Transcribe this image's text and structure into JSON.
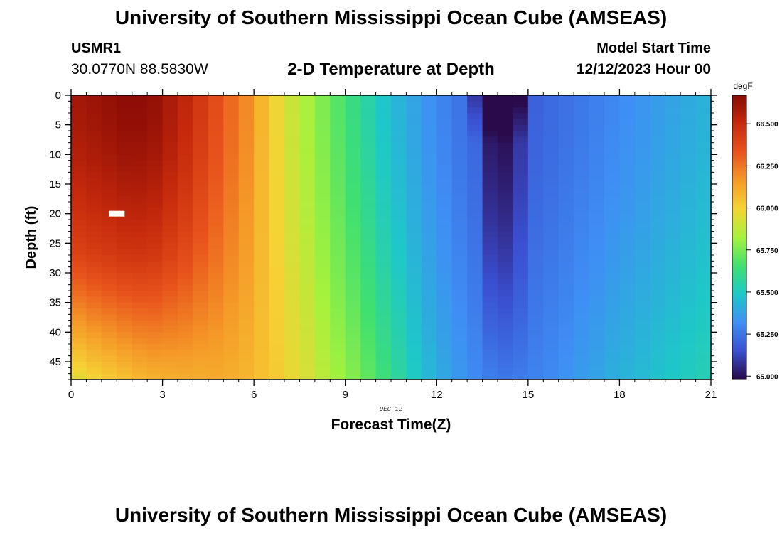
{
  "header": {
    "title": "University of Southern Mississippi Ocean Cube (AMSEAS)",
    "station": "USMR1",
    "coordinates": "30.0770N  88.5830W",
    "subtitle": "2-D Temperature at Depth",
    "model_start_label": "Model Start Time",
    "model_start_value": "12/12/2023 Hour 00"
  },
  "footer": {
    "title": "University of Southern Mississippi Ocean Cube (AMSEAS)"
  },
  "chart_data": {
    "type": "heatmap",
    "title": "2-D Temperature at Depth",
    "xlabel": "Forecast Time(Z)",
    "ylabel": "Depth (ft)",
    "date_label": "DEC 12",
    "xlim": [
      0,
      21
    ],
    "ylim": [
      0,
      48
    ],
    "x_ticks": [
      0,
      3,
      6,
      9,
      12,
      15,
      18,
      21
    ],
    "y_ticks": [
      0,
      5,
      10,
      15,
      20,
      25,
      30,
      35,
      40,
      45
    ],
    "colorbar": {
      "unit": "degF",
      "min": 64.98,
      "max": 66.67,
      "ticks": [
        "65.000",
        "65.250",
        "65.500",
        "65.750",
        "66.000",
        "66.250",
        "66.500"
      ],
      "colors": [
        "#2a0a4a",
        "#3a4fd0",
        "#3f8ef5",
        "#1ec8c8",
        "#40e070",
        "#a6f23c",
        "#f5d335",
        "#f59a28",
        "#e8531c",
        "#c62a0c",
        "#8a0b05"
      ]
    },
    "missing_cell": {
      "time": 1.5,
      "depth": 20
    },
    "columns": [
      {
        "time": 0.25,
        "surface": 66.6,
        "bottom": 66.12
      },
      {
        "time": 0.75,
        "surface": 66.62,
        "bottom": 66.14
      },
      {
        "time": 1.25,
        "surface": 66.64,
        "bottom": 66.15
      },
      {
        "time": 1.75,
        "surface": 66.66,
        "bottom": 66.16
      },
      {
        "time": 2.25,
        "surface": 66.66,
        "bottom": 66.17
      },
      {
        "time": 2.75,
        "surface": 66.64,
        "bottom": 66.17
      },
      {
        "time": 3.25,
        "surface": 66.58,
        "bottom": 66.16
      },
      {
        "time": 3.75,
        "surface": 66.52,
        "bottom": 66.15
      },
      {
        "time": 4.25,
        "surface": 66.44,
        "bottom": 66.13
      },
      {
        "time": 4.75,
        "surface": 66.36,
        "bottom": 66.12
      },
      {
        "time": 5.25,
        "surface": 66.28,
        "bottom": 66.1
      },
      {
        "time": 5.75,
        "surface": 66.2,
        "bottom": 66.08
      },
      {
        "time": 6.25,
        "surface": 66.08,
        "bottom": 66.05
      },
      {
        "time": 6.75,
        "surface": 65.98,
        "bottom": 66.02
      },
      {
        "time": 7.25,
        "surface": 65.9,
        "bottom": 65.97
      },
      {
        "time": 7.75,
        "surface": 65.83,
        "bottom": 65.93
      },
      {
        "time": 8.25,
        "surface": 65.76,
        "bottom": 65.87
      },
      {
        "time": 8.75,
        "surface": 65.69,
        "bottom": 65.82
      },
      {
        "time": 9.25,
        "surface": 65.62,
        "bottom": 65.77
      },
      {
        "time": 9.75,
        "surface": 65.55,
        "bottom": 65.71
      },
      {
        "time": 10.25,
        "surface": 65.48,
        "bottom": 65.64
      },
      {
        "time": 10.75,
        "surface": 65.43,
        "bottom": 65.57
      },
      {
        "time": 11.25,
        "surface": 65.38,
        "bottom": 65.5
      },
      {
        "time": 11.75,
        "surface": 65.33,
        "bottom": 65.44
      },
      {
        "time": 12.25,
        "surface": 65.29,
        "bottom": 65.39
      },
      {
        "time": 12.75,
        "surface": 65.25,
        "bottom": 65.35
      },
      {
        "time": 13.25,
        "surface": 65.21,
        "bottom": 65.31
      },
      {
        "time": 13.75,
        "surface": 65.0,
        "bottom": 65.28
      },
      {
        "time": 14.25,
        "surface": 64.98,
        "bottom": 65.26
      },
      {
        "time": 14.75,
        "surface": 65.08,
        "bottom": 65.27
      },
      {
        "time": 15.25,
        "surface": 65.2,
        "bottom": 65.29
      },
      {
        "time": 15.75,
        "surface": 65.22,
        "bottom": 65.31
      },
      {
        "time": 16.25,
        "surface": 65.24,
        "bottom": 65.33
      },
      {
        "time": 16.75,
        "surface": 65.26,
        "bottom": 65.36
      },
      {
        "time": 17.25,
        "surface": 65.28,
        "bottom": 65.38
      },
      {
        "time": 17.75,
        "surface": 65.3,
        "bottom": 65.41
      },
      {
        "time": 18.25,
        "surface": 65.32,
        "bottom": 65.43
      },
      {
        "time": 18.75,
        "surface": 65.34,
        "bottom": 65.45
      },
      {
        "time": 19.25,
        "surface": 65.36,
        "bottom": 65.47
      },
      {
        "time": 19.75,
        "surface": 65.38,
        "bottom": 65.49
      },
      {
        "time": 20.25,
        "surface": 65.4,
        "bottom": 65.51
      },
      {
        "time": 20.75,
        "surface": 65.42,
        "bottom": 65.53
      }
    ]
  }
}
